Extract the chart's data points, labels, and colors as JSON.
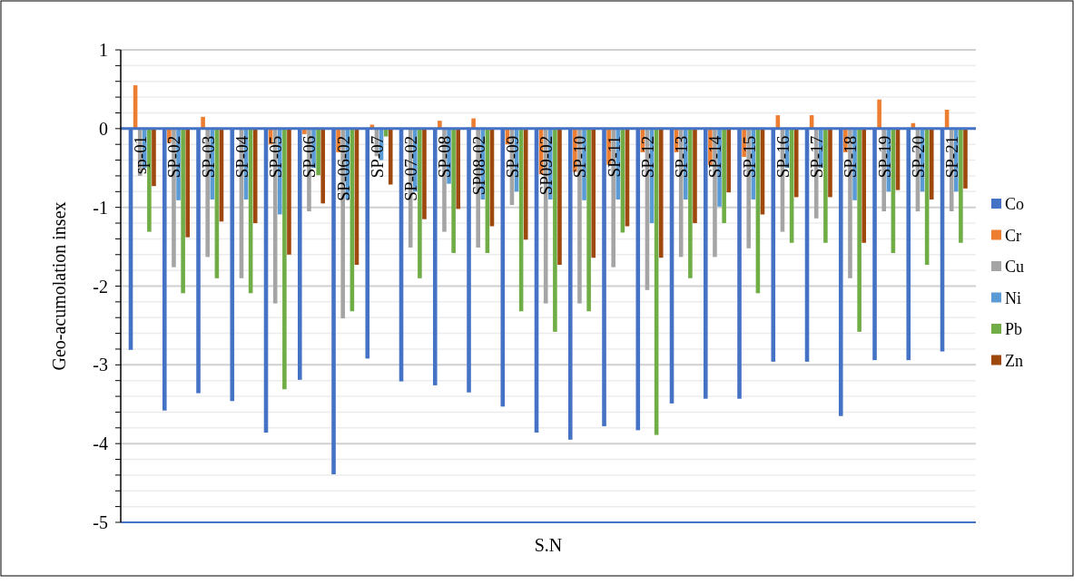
{
  "chart_data": {
    "type": "bar",
    "xlabel": "S.N",
    "ylabel": "Geo-acumolation insex",
    "categories": [
      "sp-01",
      "SP-02",
      "SP-03",
      "SP-04",
      "SP-05",
      "SP-06",
      "SP-06-02",
      "SP-07",
      "SP-07-02",
      "SP-08",
      "SP08-02",
      "SP-09",
      "SP09-02",
      "SP-10",
      "SP-11",
      "SP-12",
      "SP-13",
      "SP-14",
      "SP-15",
      "SP-16",
      "SP-17",
      "SP-18",
      "SP-19",
      "SP-20",
      "SP-21"
    ],
    "series": [
      {
        "name": "Co",
        "color": "#4472c4",
        "values": [
          -2.81,
          -3.58,
          -3.36,
          -3.46,
          -3.86,
          -3.19,
          -4.39,
          -2.92,
          -3.21,
          -3.26,
          -3.35,
          -3.53,
          -3.86,
          -3.95,
          -3.78,
          -3.83,
          -3.49,
          -3.43,
          -3.43,
          -2.96,
          -2.96,
          -3.65,
          -2.94,
          -2.94,
          -2.83
        ]
      },
      {
        "name": "Cr",
        "color": "#ed7d31",
        "values": [
          0.55,
          -0.18,
          0.15,
          null,
          -0.2,
          -0.07,
          -0.3,
          0.05,
          null,
          0.1,
          0.13,
          -0.2,
          -0.58,
          -0.55,
          -0.46,
          -0.3,
          -0.3,
          -0.46,
          -0.36,
          0.17,
          0.17,
          -0.3,
          0.37,
          0.07,
          0.24
        ]
      },
      {
        "name": "Cu",
        "color": "#a5a5a5",
        "values": [
          -0.6,
          -1.76,
          -1.63,
          -1.9,
          -2.22,
          -1.05,
          -2.41,
          -0.35,
          -1.51,
          -1.31,
          -1.51,
          -0.97,
          -2.22,
          -2.22,
          -1.76,
          -2.05,
          -1.63,
          -1.63,
          -1.52,
          -1.31,
          -1.14,
          -1.9,
          -1.05,
          -1.05,
          -1.05
        ]
      },
      {
        "name": "Ni",
        "color": "#5b9bd5",
        "values": [
          -0.5,
          -0.91,
          -0.9,
          -0.9,
          -1.09,
          -0.5,
          -0.9,
          -0.4,
          -0.8,
          -0.7,
          -0.9,
          -0.8,
          -0.9,
          -0.91,
          -0.9,
          -1.2,
          -0.9,
          -0.99,
          -0.9,
          -0.5,
          -0.5,
          -0.91,
          -0.8,
          -0.8,
          -0.8
        ]
      },
      {
        "name": "Pb",
        "color": "#70ad47",
        "values": [
          -1.31,
          -2.09,
          -1.9,
          -2.09,
          -3.31,
          -0.59,
          -2.32,
          -0.1,
          -1.9,
          -1.58,
          -1.58,
          -2.32,
          -2.58,
          -2.32,
          -1.32,
          -3.89,
          -1.9,
          -1.2,
          -2.09,
          -1.45,
          -1.45,
          -2.58,
          -1.58,
          -1.73,
          -1.45
        ]
      },
      {
        "name": "Zn",
        "color": "#9e480e",
        "values": [
          -0.73,
          -1.38,
          -1.18,
          -1.2,
          -1.6,
          -0.95,
          -1.73,
          -0.71,
          -1.15,
          -1.02,
          -1.24,
          -1.41,
          -1.73,
          -1.64,
          -1.24,
          -1.64,
          -1.2,
          -0.81,
          -1.09,
          -0.87,
          -0.87,
          -1.45,
          -0.78,
          -0.9,
          -0.76
        ]
      }
    ],
    "ylim": [
      -5,
      1
    ],
    "yticks": [
      -5,
      {
        "value": -4.8,
        "label": null
      },
      {
        "value": -4.6,
        "label": null
      },
      {
        "value": -4.4,
        "label": null
      },
      {
        "value": -4.2,
        "label": null
      },
      -4,
      {
        "value": -3.8,
        "label": null
      },
      {
        "value": -3.6,
        "label": null
      },
      {
        "value": -3.4,
        "label": null
      },
      {
        "value": -3.2,
        "label": null
      },
      -3,
      {
        "value": -2.8,
        "label": null
      },
      {
        "value": -2.6,
        "label": null
      },
      {
        "value": -2.4,
        "label": null
      },
      {
        "value": -2.2,
        "label": null
      },
      -2,
      {
        "value": -1.8,
        "label": null
      },
      {
        "value": -1.6,
        "label": null
      },
      {
        "value": -1.4,
        "label": null
      },
      {
        "value": -1.2,
        "label": null
      },
      -1,
      {
        "value": -0.8,
        "label": null
      },
      {
        "value": -0.6,
        "label": null
      },
      {
        "value": -0.4,
        "label": null
      },
      {
        "value": -0.2,
        "label": null
      },
      0,
      {
        "value": 0.2,
        "label": null
      },
      {
        "value": 0.4,
        "label": null
      },
      {
        "value": 0.6,
        "label": null
      },
      {
        "value": 0.8,
        "label": null
      },
      1
    ],
    "grid": true,
    "legend": "right"
  }
}
